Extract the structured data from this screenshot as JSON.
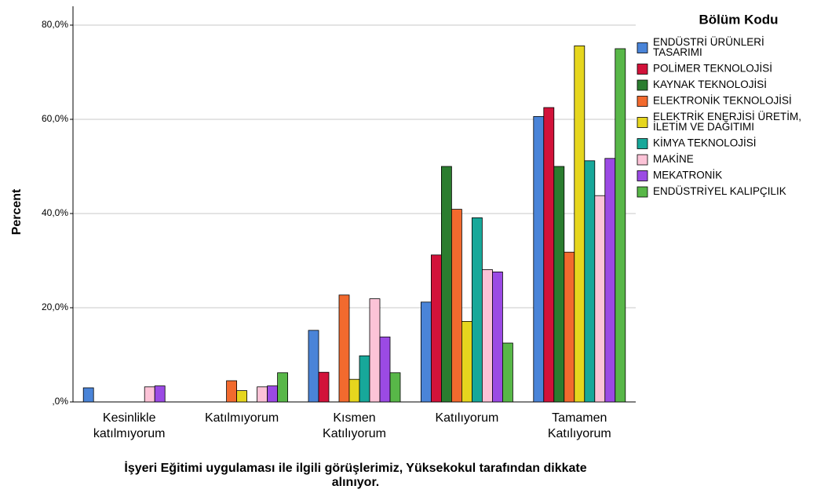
{
  "chart_data": {
    "type": "bar",
    "x_label": "İşyeri Eğitimi uygulaması ile ilgili görüşlerimiz, Yüksekokul tarafından dikkate alınıyor.",
    "y_label": "Percent",
    "legend_title": "Bölüm Kodu",
    "categories": [
      "Kesinlikle katılmıyorum",
      "Katılmıyorum",
      "Kısmen Katılıyorum",
      "Katılıyorum",
      "Tamamen Katılıyorum"
    ],
    "series": [
      {
        "name": "ENDÜSTRİ ÜRÜNLERİ TASARIMI",
        "color": "#4a84d8",
        "values": [
          3.0,
          0,
          15.2,
          21.2,
          60.6
        ]
      },
      {
        "name": "POLİMER TEKNOLOJİSİ",
        "color": "#d2123a",
        "values": [
          0,
          0,
          6.3,
          31.2,
          62.5
        ]
      },
      {
        "name": "KAYNAK TEKNOLOJİSİ",
        "color": "#2b7d2f",
        "values": [
          0,
          0,
          0,
          50.0,
          50.0
        ]
      },
      {
        "name": "ELEKTRONİK TEKNOLOJİSİ",
        "color": "#f26a2e",
        "values": [
          0,
          4.5,
          22.7,
          40.9,
          31.8
        ]
      },
      {
        "name": "ELEKTRİK ENERJİSİ ÜRETİM, İLETİM VE DAĞITIMI",
        "color": "#e6d61e",
        "values": [
          0,
          2.4,
          4.8,
          17.1,
          75.6
        ]
      },
      {
        "name": "KİMYA TEKNOLOJİSİ",
        "color": "#17a89a",
        "values": [
          0,
          0,
          9.8,
          39.1,
          51.2
        ]
      },
      {
        "name": "MAKİNE",
        "color": "#fcc3d7",
        "values": [
          3.2,
          3.2,
          21.9,
          28.1,
          43.8
        ]
      },
      {
        "name": "MEKATRONİK",
        "color": "#9b4ae4",
        "values": [
          3.4,
          3.4,
          13.8,
          27.6,
          51.7
        ]
      },
      {
        "name": "ENDÜSTRİYEL KALIPÇILIK",
        "color": "#58b748",
        "values": [
          0,
          6.2,
          6.2,
          12.5,
          75.0
        ]
      }
    ],
    "ylim": [
      0,
      84
    ],
    "yticks": [
      {
        "value": 0,
        "label": ",0%"
      },
      {
        "value": 20,
        "label": "20,0%"
      },
      {
        "value": 40,
        "label": "40,0%"
      },
      {
        "value": 60,
        "label": "60,0%"
      },
      {
        "value": 80,
        "label": "80,0%"
      }
    ],
    "grid": true
  }
}
